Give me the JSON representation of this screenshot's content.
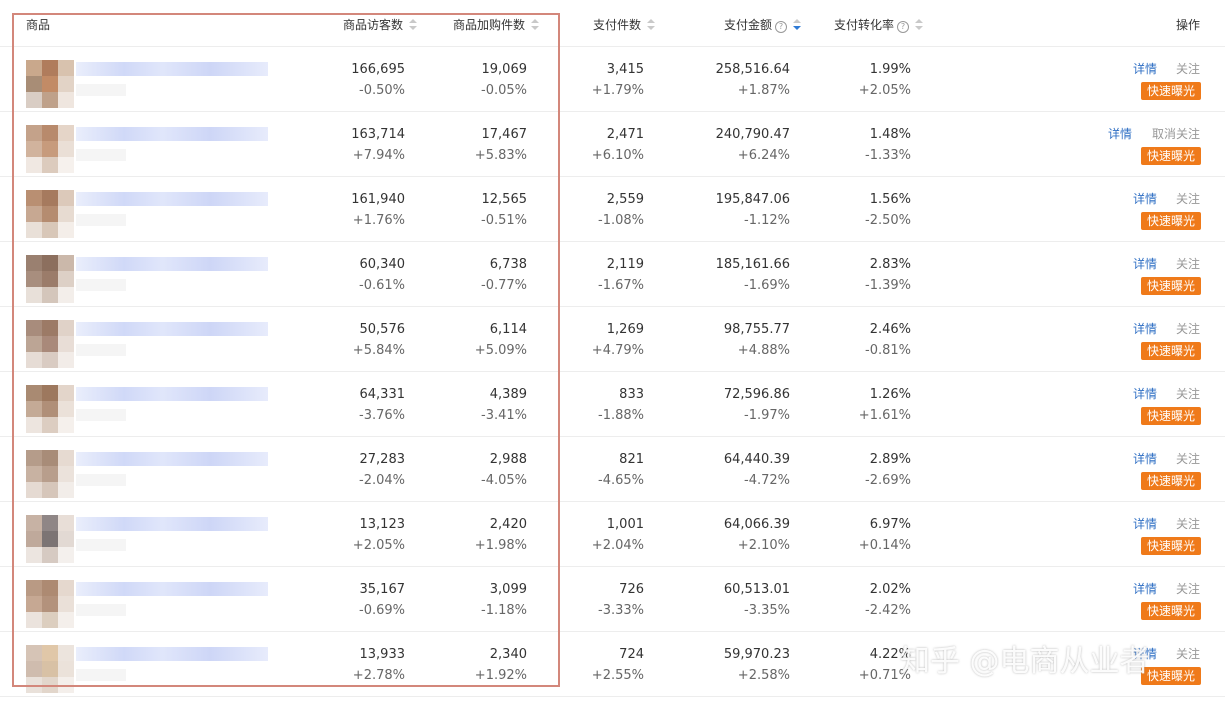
{
  "header": {
    "product": "商品",
    "visitors": "商品访客数",
    "cart": "商品加购件数",
    "pay_count": "支付件数",
    "pay_amount": "支付金额",
    "conversion": "支付转化率",
    "ops": "操作"
  },
  "colors": {
    "accent": "#ef7a1a",
    "link": "#2f6fc4",
    "highlight": "#d3877b"
  },
  "rows": [
    {
      "visitors": "166,695",
      "visitors_pct": "-0.50%",
      "cart": "19,069",
      "cart_pct": "-0.05%",
      "pay_count": "3,415",
      "pay_count_pct": "+1.79%",
      "pay_amount": "258,516.64",
      "pay_amount_pct": "+1.87%",
      "conv": "1.99%",
      "conv_pct": "+2.05%",
      "detail": "详情",
      "follow": "关注",
      "promote": "快速曝光"
    },
    {
      "visitors": "163,714",
      "visitors_pct": "+7.94%",
      "cart": "17,467",
      "cart_pct": "+5.83%",
      "pay_count": "2,471",
      "pay_count_pct": "+6.10%",
      "pay_amount": "240,790.47",
      "pay_amount_pct": "+6.24%",
      "conv": "1.48%",
      "conv_pct": "-1.33%",
      "detail": "详情",
      "follow": "取消关注",
      "promote": "快速曝光"
    },
    {
      "visitors": "161,940",
      "visitors_pct": "+1.76%",
      "cart": "12,565",
      "cart_pct": "-0.51%",
      "pay_count": "2,559",
      "pay_count_pct": "-1.08%",
      "pay_amount": "195,847.06",
      "pay_amount_pct": "-1.12%",
      "conv": "1.56%",
      "conv_pct": "-2.50%",
      "detail": "详情",
      "follow": "关注",
      "promote": "快速曝光"
    },
    {
      "visitors": "60,340",
      "visitors_pct": "-0.61%",
      "cart": "6,738",
      "cart_pct": "-0.77%",
      "pay_count": "2,119",
      "pay_count_pct": "-1.67%",
      "pay_amount": "185,161.66",
      "pay_amount_pct": "-1.69%",
      "conv": "2.83%",
      "conv_pct": "-1.39%",
      "detail": "详情",
      "follow": "关注",
      "promote": "快速曝光"
    },
    {
      "visitors": "50,576",
      "visitors_pct": "+5.84%",
      "cart": "6,114",
      "cart_pct": "+5.09%",
      "pay_count": "1,269",
      "pay_count_pct": "+4.79%",
      "pay_amount": "98,755.77",
      "pay_amount_pct": "+4.88%",
      "conv": "2.46%",
      "conv_pct": "-0.81%",
      "detail": "详情",
      "follow": "关注",
      "promote": "快速曝光"
    },
    {
      "visitors": "64,331",
      "visitors_pct": "-3.76%",
      "cart": "4,389",
      "cart_pct": "-3.41%",
      "pay_count": "833",
      "pay_count_pct": "-1.88%",
      "pay_amount": "72,596.86",
      "pay_amount_pct": "-1.97%",
      "conv": "1.26%",
      "conv_pct": "+1.61%",
      "detail": "详情",
      "follow": "关注",
      "promote": "快速曝光"
    },
    {
      "visitors": "27,283",
      "visitors_pct": "-2.04%",
      "cart": "2,988",
      "cart_pct": "-4.05%",
      "pay_count": "821",
      "pay_count_pct": "-4.65%",
      "pay_amount": "64,440.39",
      "pay_amount_pct": "-4.72%",
      "conv": "2.89%",
      "conv_pct": "-2.69%",
      "detail": "详情",
      "follow": "关注",
      "promote": "快速曝光"
    },
    {
      "visitors": "13,123",
      "visitors_pct": "+2.05%",
      "cart": "2,420",
      "cart_pct": "+1.98%",
      "pay_count": "1,001",
      "pay_count_pct": "+2.04%",
      "pay_amount": "64,066.39",
      "pay_amount_pct": "+2.10%",
      "conv": "6.97%",
      "conv_pct": "+0.14%",
      "detail": "详情",
      "follow": "关注",
      "promote": "快速曝光"
    },
    {
      "visitors": "35,167",
      "visitors_pct": "-0.69%",
      "cart": "3,099",
      "cart_pct": "-1.18%",
      "pay_count": "726",
      "pay_count_pct": "-3.33%",
      "pay_amount": "60,513.01",
      "pay_amount_pct": "-3.35%",
      "conv": "2.02%",
      "conv_pct": "-2.42%",
      "detail": "详情",
      "follow": "关注",
      "promote": "快速曝光"
    },
    {
      "visitors": "13,933",
      "visitors_pct": "+2.78%",
      "cart": "2,340",
      "cart_pct": "+1.92%",
      "pay_count": "724",
      "pay_count_pct": "+2.55%",
      "pay_amount": "59,970.23",
      "pay_amount_pct": "+2.58%",
      "conv": "4.22%",
      "conv_pct": "+0.71%",
      "detail": "详情",
      "follow": "关注",
      "promote": "快速曝光"
    }
  ],
  "watermark": "知乎 @电商从业者"
}
